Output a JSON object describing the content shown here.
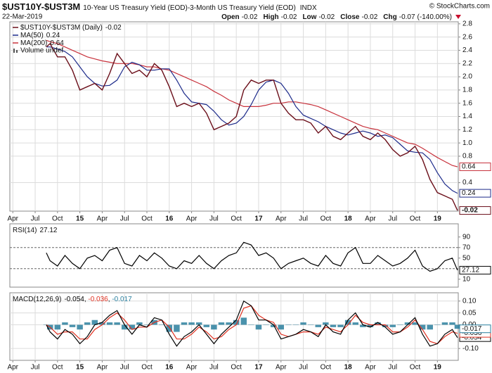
{
  "header": {
    "symbol": "$UST10Y-$UST3M",
    "description": "10-Year US Treasury Yield (EOD)-3-Month US Treasury Yield (EOD)",
    "exchange": "INDX",
    "source": "© StockCharts.com",
    "date": "22-Mar-2019",
    "quote": [
      {
        "label": "Open",
        "value": -0.02
      },
      {
        "label": "High",
        "value": -0.02
      },
      {
        "label": "Low",
        "value": -0.02
      },
      {
        "label": "Close",
        "value": -0.02
      },
      {
        "label": "Chg",
        "value": -0.07
      }
    ],
    "change_percent": "(-140.00%)"
  },
  "chart_data": [
    {
      "type": "line",
      "x": [
        4.5,
        5,
        6,
        7,
        8,
        9,
        10,
        11,
        12,
        13,
        14,
        15,
        16,
        17,
        18,
        19,
        20,
        21,
        22,
        23,
        24,
        25,
        26,
        27,
        28,
        29,
        30,
        31,
        32,
        33,
        34,
        35,
        36,
        37,
        38,
        39,
        40,
        41,
        42,
        43,
        44,
        45,
        46,
        47,
        48,
        49,
        50,
        51,
        52,
        53,
        54,
        55,
        56,
        57,
        58,
        59,
        59.7
      ],
      "xlim": [
        -0.4,
        59.8
      ],
      "xticks": [
        {
          "value": 0,
          "label": "Apr"
        },
        {
          "value": 3,
          "label": "Jul"
        },
        {
          "value": 6,
          "label": "Oct"
        },
        {
          "value": 9,
          "label": "15"
        },
        {
          "value": 12,
          "label": "Apr"
        },
        {
          "value": 15,
          "label": "Jul"
        },
        {
          "value": 18,
          "label": "Oct"
        },
        {
          "value": 21,
          "label": "16"
        },
        {
          "value": 24,
          "label": "Apr"
        },
        {
          "value": 27,
          "label": "Jul"
        },
        {
          "value": 30,
          "label": "Oct"
        },
        {
          "value": 33,
          "label": "17"
        },
        {
          "value": 36,
          "label": "Apr"
        },
        {
          "value": 39,
          "label": "Jul"
        },
        {
          "value": 42,
          "label": "Oct"
        },
        {
          "value": 45,
          "label": "18"
        },
        {
          "value": 48,
          "label": "Apr"
        },
        {
          "value": 51,
          "label": "Jul"
        },
        {
          "value": 54,
          "label": "Oct"
        },
        {
          "value": 57,
          "label": "19"
        }
      ],
      "ylim": [
        -0.03,
        2.83
      ],
      "yticks": [
        0.4,
        0.8,
        {
          "value": 1,
          "label": "1.0"
        },
        1.2,
        1.4,
        1.6,
        1.8,
        {
          "value": 2,
          "label": "2.0"
        },
        2.2,
        2.4,
        2.6,
        2.8
      ],
      "grid": true,
      "volume_label": "Volume undef",
      "series": [
        {
          "name": "$UST10Y-$UST3M (Daily)",
          "color": "#6b0f1a",
          "values": [
            2.45,
            2.5,
            2.3,
            2.3,
            2.1,
            1.8,
            1.85,
            1.9,
            1.8,
            2.05,
            2.35,
            2.2,
            2.05,
            2.1,
            2.0,
            2.2,
            2.1,
            1.85,
            1.55,
            1.6,
            1.55,
            1.6,
            1.45,
            1.2,
            1.25,
            1.3,
            1.4,
            1.8,
            1.95,
            1.9,
            1.95,
            1.95,
            1.6,
            1.45,
            1.35,
            1.35,
            1.3,
            1.15,
            1.25,
            1.1,
            1.05,
            1.15,
            1.25,
            1.1,
            1.05,
            1.15,
            1.05,
            0.9,
            0.8,
            0.85,
            0.95,
            0.75,
            0.45,
            0.25,
            0.2,
            0.15,
            -0.02
          ]
        },
        {
          "name": "MA(50)",
          "color": "#1c2a8a",
          "values": [
            2.45,
            2.45,
            2.42,
            2.38,
            2.3,
            2.15,
            2.0,
            1.9,
            1.86,
            1.87,
            1.95,
            2.15,
            2.22,
            2.18,
            2.1,
            2.1,
            2.12,
            2.12,
            1.95,
            1.75,
            1.62,
            1.6,
            1.58,
            1.48,
            1.35,
            1.27,
            1.3,
            1.4,
            1.58,
            1.8,
            1.92,
            1.95,
            1.9,
            1.75,
            1.55,
            1.42,
            1.37,
            1.32,
            1.25,
            1.2,
            1.15,
            1.12,
            1.15,
            1.18,
            1.15,
            1.1,
            1.12,
            1.08,
            0.98,
            0.88,
            0.86,
            0.85,
            0.75,
            0.55,
            0.38,
            0.28,
            0.24
          ]
        },
        {
          "name": "MA(200)",
          "color": "#c8323c",
          "values": [
            2.55,
            2.53,
            2.5,
            2.45,
            2.4,
            2.35,
            2.3,
            2.27,
            2.24,
            2.22,
            2.2,
            2.2,
            2.2,
            2.18,
            2.15,
            2.15,
            2.12,
            2.1,
            2.05,
            2.0,
            1.95,
            1.9,
            1.85,
            1.78,
            1.72,
            1.65,
            1.6,
            1.55,
            1.55,
            1.55,
            1.57,
            1.6,
            1.6,
            1.62,
            1.62,
            1.6,
            1.58,
            1.55,
            1.5,
            1.45,
            1.4,
            1.35,
            1.3,
            1.25,
            1.22,
            1.2,
            1.15,
            1.1,
            1.05,
            1.0,
            0.98,
            0.92,
            0.85,
            0.78,
            0.72,
            0.66,
            0.64
          ]
        }
      ]
    },
    {
      "type": "line",
      "x": [
        4.5,
        5,
        6,
        7,
        8,
        9,
        10,
        11,
        12,
        13,
        14,
        15,
        16,
        17,
        18,
        19,
        20,
        21,
        22,
        23,
        24,
        25,
        26,
        27,
        28,
        29,
        30,
        31,
        32,
        33,
        34,
        35,
        36,
        37,
        38,
        39,
        40,
        41,
        42,
        43,
        44,
        45,
        46,
        47,
        48,
        49,
        50,
        51,
        52,
        53,
        54,
        55,
        56,
        57,
        58,
        59,
        59.7
      ],
      "xlim": [
        -0.4,
        59.8
      ],
      "ylim": [
        -5,
        115
      ],
      "yticks": [
        10,
        50,
        70,
        90
      ],
      "reference_lines": [
        30,
        70
      ],
      "series": [
        {
          "name": "RSI(14)",
          "color": "#000000",
          "values": [
            60,
            45,
            35,
            55,
            40,
            30,
            50,
            55,
            45,
            65,
            70,
            40,
            35,
            55,
            45,
            60,
            50,
            35,
            30,
            45,
            40,
            55,
            40,
            30,
            45,
            55,
            60,
            80,
            75,
            55,
            60,
            50,
            30,
            40,
            45,
            50,
            40,
            35,
            55,
            40,
            35,
            60,
            70,
            40,
            40,
            55,
            45,
            35,
            40,
            50,
            65,
            35,
            25,
            30,
            45,
            50,
            27.12
          ]
        }
      ]
    },
    {
      "type": "line",
      "title": "MACD(12,26,9)",
      "separator": ", ",
      "x": [
        4.5,
        5,
        6,
        7,
        8,
        9,
        10,
        11,
        12,
        13,
        14,
        15,
        16,
        17,
        18,
        19,
        20,
        21,
        22,
        23,
        24,
        25,
        26,
        27,
        28,
        29,
        30,
        31,
        32,
        33,
        34,
        35,
        36,
        37,
        38,
        39,
        40,
        41,
        42,
        43,
        44,
        45,
        46,
        47,
        48,
        49,
        50,
        51,
        52,
        53,
        54,
        55,
        56,
        57,
        58,
        59,
        59.7
      ],
      "xlim": [
        -0.4,
        59.8
      ],
      "xticks": [
        {
          "value": 0,
          "label": "Apr"
        },
        {
          "value": 3,
          "label": "Jul"
        },
        {
          "value": 6,
          "label": "Oct"
        },
        {
          "value": 9,
          "label": "15"
        },
        {
          "value": 12,
          "label": "Apr"
        },
        {
          "value": 15,
          "label": "Jul"
        },
        {
          "value": 18,
          "label": "Oct"
        },
        {
          "value": 21,
          "label": "16"
        },
        {
          "value": 24,
          "label": "Apr"
        },
        {
          "value": 27,
          "label": "Jul"
        },
        {
          "value": 30,
          "label": "Oct"
        },
        {
          "value": 33,
          "label": "17"
        },
        {
          "value": 36,
          "label": "Apr"
        },
        {
          "value": 39,
          "label": "Jul"
        },
        {
          "value": 42,
          "label": "Oct"
        },
        {
          "value": 45,
          "label": "18"
        },
        {
          "value": 48,
          "label": "Apr"
        },
        {
          "value": 51,
          "label": "Jul"
        },
        {
          "value": 54,
          "label": "Oct"
        },
        {
          "value": 57,
          "label": "19"
        }
      ],
      "ylim": [
        -0.15,
        0.135
      ],
      "yticks": [
        {
          "value": -0.1,
          "label": "-0.10"
        },
        {
          "value": 0,
          "label": "0.00"
        },
        {
          "value": 0.05,
          "label": "0.05"
        },
        {
          "value": 0.1,
          "label": "0.10"
        }
      ],
      "grid": true,
      "series": [
        {
          "color": "#000000",
          "values": [
            0.0,
            -0.03,
            -0.06,
            -0.02,
            -0.04,
            -0.08,
            -0.05,
            0.0,
            0.01,
            0.04,
            0.06,
            0.0,
            -0.04,
            0.0,
            -0.01,
            0.03,
            0.02,
            -0.04,
            -0.09,
            -0.05,
            -0.03,
            0.0,
            -0.04,
            -0.08,
            -0.04,
            -0.01,
            0.02,
            0.1,
            0.08,
            0.02,
            0.02,
            0.0,
            -0.06,
            -0.05,
            -0.04,
            -0.02,
            -0.03,
            -0.05,
            0.0,
            -0.03,
            -0.04,
            0.02,
            0.05,
            0.0,
            -0.01,
            0.01,
            -0.01,
            -0.04,
            -0.03,
            0.0,
            0.03,
            -0.04,
            -0.09,
            -0.08,
            -0.04,
            -0.02,
            -0.054
          ]
        },
        {
          "color": "#e03020",
          "values": [
            0.0,
            -0.01,
            -0.04,
            -0.03,
            -0.03,
            -0.06,
            -0.06,
            -0.02,
            0.0,
            0.03,
            0.05,
            0.02,
            -0.02,
            -0.01,
            -0.01,
            0.01,
            0.02,
            -0.01,
            -0.06,
            -0.06,
            -0.04,
            -0.01,
            -0.03,
            -0.06,
            -0.05,
            -0.02,
            0.0,
            0.07,
            0.08,
            0.04,
            0.02,
            0.01,
            -0.04,
            -0.05,
            -0.04,
            -0.03,
            -0.03,
            -0.04,
            -0.01,
            -0.02,
            -0.03,
            0.0,
            0.04,
            0.01,
            0.0,
            0.0,
            0.0,
            -0.03,
            -0.03,
            -0.01,
            0.02,
            -0.02,
            -0.07,
            -0.08,
            -0.05,
            -0.03,
            -0.036
          ]
        },
        {
          "type": "bar",
          "color": "#2a7f9e",
          "values": [
            0.0,
            -0.02,
            -0.02,
            0.01,
            -0.01,
            -0.02,
            0.01,
            0.02,
            0.01,
            0.01,
            0.01,
            -0.02,
            -0.02,
            0.01,
            0.0,
            0.02,
            0.0,
            -0.03,
            -0.03,
            0.01,
            0.01,
            0.01,
            -0.01,
            -0.02,
            0.01,
            0.01,
            0.02,
            0.03,
            0.0,
            -0.02,
            0.0,
            -0.01,
            -0.02,
            0.0,
            0.0,
            0.01,
            0.0,
            -0.01,
            0.01,
            -0.01,
            -0.01,
            0.02,
            0.01,
            -0.01,
            -0.01,
            0.01,
            -0.01,
            -0.01,
            0.0,
            0.01,
            0.01,
            -0.02,
            -0.02,
            0.0,
            0.01,
            0.01,
            -0.017
          ]
        }
      ]
    }
  ]
}
